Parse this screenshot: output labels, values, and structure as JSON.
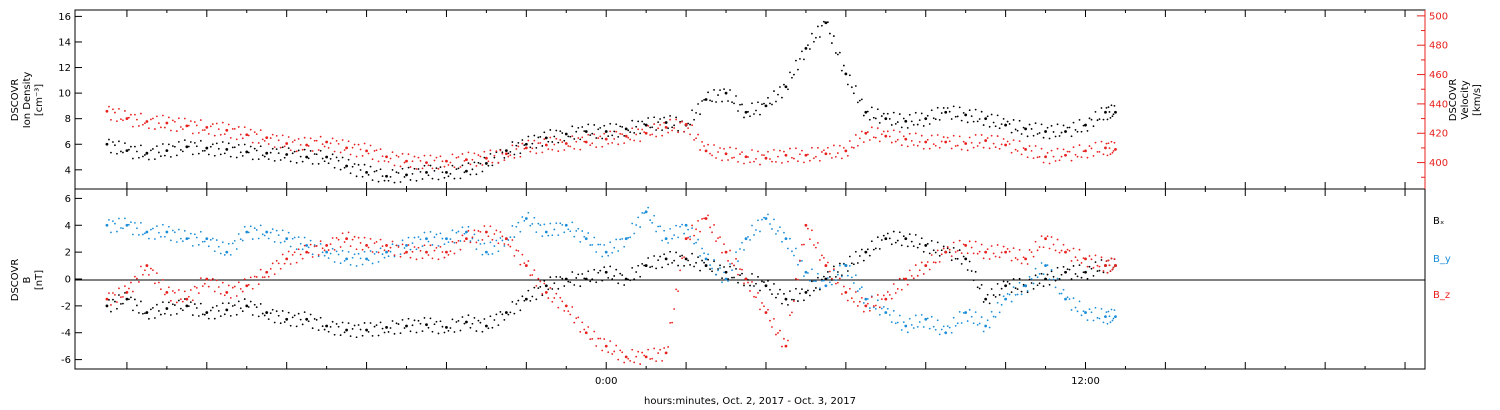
{
  "chart_data": [
    {
      "type": "scatter",
      "panel": "top",
      "ylabel_left": [
        "DSCOVR",
        "Ion Density",
        "[cm⁻³]"
      ],
      "ylabel_right": [
        "DSCOVR",
        "Velocity",
        "[km/s]"
      ],
      "left_axis": {
        "ylim": [
          2.5,
          16.5
        ],
        "ticks": [
          4,
          6,
          8,
          10,
          12,
          14,
          16
        ]
      },
      "right_axis": {
        "ylim": [
          382,
          504
        ],
        "ticks": [
          400,
          420,
          440,
          460,
          480,
          500
        ],
        "color": "#e8201e"
      },
      "series": [
        {
          "axis": "left",
          "color": "#000000",
          "x": [
            -12.5,
            -12.0,
            -11.5,
            -11.0,
            -10.5,
            -10.0,
            -9.5,
            -9.0,
            -8.5,
            -8.0,
            -7.5,
            -7.0,
            -6.5,
            -6.0,
            -5.5,
            -5.0,
            -4.5,
            -4.0,
            -3.5,
            -3.0,
            -2.5,
            -2.0,
            -1.5,
            -1.0,
            -0.5,
            0.0,
            0.5,
            1.0,
            1.5,
            2.0,
            2.5,
            3.0,
            3.5,
            4.0,
            4.5,
            5.0,
            5.5,
            6.0,
            6.5,
            7.0,
            7.5,
            8.0,
            8.5,
            9.0,
            9.5,
            10.0,
            10.5,
            11.0,
            11.5,
            12.0,
            12.5,
            12.75
          ],
          "y": [
            6.0,
            5.5,
            5.3,
            5.5,
            5.8,
            5.7,
            5.6,
            5.4,
            5.3,
            5.2,
            5.0,
            5.0,
            4.3,
            3.8,
            3.5,
            3.6,
            3.8,
            3.8,
            3.9,
            4.5,
            5.5,
            6.0,
            6.5,
            6.8,
            7.0,
            7.0,
            7.2,
            7.5,
            7.7,
            7.5,
            9.5,
            10.0,
            8.5,
            9.0,
            10.5,
            13.5,
            15.5,
            11.5,
            8.5,
            8.0,
            7.8,
            8.0,
            8.5,
            8.3,
            8.0,
            7.5,
            7.2,
            7.0,
            7.0,
            7.5,
            8.5,
            8.5
          ]
        },
        {
          "axis": "right",
          "color": "#e8201e",
          "x": [
            -12.5,
            -12.0,
            -11.5,
            -11.0,
            -10.5,
            -10.0,
            -9.5,
            -9.0,
            -8.5,
            -8.0,
            -7.5,
            -7.0,
            -6.5,
            -6.0,
            -5.5,
            -5.0,
            -4.5,
            -4.0,
            -3.5,
            -3.0,
            -2.5,
            -2.0,
            -1.5,
            -1.0,
            -0.5,
            0.0,
            0.5,
            1.0,
            1.5,
            2.0,
            2.5,
            3.0,
            3.5,
            4.0,
            4.5,
            5.0,
            5.5,
            6.0,
            6.5,
            7.0,
            7.5,
            8.0,
            8.5,
            9.0,
            9.5,
            10.0,
            10.5,
            11.0,
            11.5,
            12.0,
            12.5,
            12.75
          ],
          "y": [
            435,
            430,
            428,
            427,
            425,
            424,
            422,
            419,
            417,
            413,
            412,
            414,
            410,
            408,
            404,
            401,
            400,
            401,
            402,
            403,
            406,
            410,
            412,
            413,
            414,
            416,
            418,
            420,
            424,
            426,
            408,
            406,
            404,
            403,
            405,
            405,
            406,
            408,
            420,
            418,
            416,
            414,
            414,
            413,
            415,
            412,
            409,
            404,
            405,
            408,
            410,
            409
          ]
        }
      ]
    },
    {
      "type": "scatter",
      "panel": "bottom",
      "ylabel_left": [
        "DSCOVR",
        "B",
        "[nT]"
      ],
      "ylim": [
        -6.7,
        6.7
      ],
      "ticks": [
        -6,
        -4,
        -2,
        0,
        2,
        4,
        6
      ],
      "zero_line": true,
      "legend_position": "right",
      "series": [
        {
          "name": "Bₓ",
          "color": "#000000",
          "x": [
            -12.5,
            -12.0,
            -11.5,
            -11.0,
            -10.5,
            -10.0,
            -9.5,
            -9.0,
            -8.5,
            -8.0,
            -7.5,
            -7.0,
            -6.5,
            -6.0,
            -5.5,
            -5.0,
            -4.5,
            -4.0,
            -3.5,
            -3.0,
            -2.5,
            -2.0,
            -1.5,
            -1.0,
            -0.5,
            0.0,
            0.5,
            1.0,
            1.5,
            2.0,
            2.5,
            3.0,
            3.5,
            4.0,
            4.5,
            5.0,
            5.5,
            6.0,
            6.5,
            7.0,
            7.5,
            8.0,
            8.5,
            9.0,
            9.5,
            10.0,
            10.5,
            11.0,
            11.5,
            12.0,
            12.5,
            12.75
          ],
          "y": [
            -2.0,
            -1.5,
            -2.5,
            -2.2,
            -2.0,
            -2.5,
            -2.3,
            -2.0,
            -2.5,
            -3.0,
            -3.0,
            -3.5,
            -3.8,
            -3.8,
            -3.6,
            -3.5,
            -3.4,
            -3.6,
            -3.2,
            -3.5,
            -2.5,
            -1.5,
            -0.5,
            0.0,
            0.0,
            0.5,
            0.0,
            1.0,
            1.5,
            1.5,
            1.0,
            0.5,
            0.0,
            -0.5,
            -1.5,
            -1.0,
            0.0,
            1.0,
            2.0,
            3.0,
            3.0,
            2.5,
            2.0,
            1.5,
            -1.5,
            -0.5,
            -0.5,
            0.0,
            0.5,
            0.5,
            1.0,
            1.0
          ]
        },
        {
          "name": "B_y",
          "color": "#1c8ed8",
          "x": [
            -12.5,
            -12.0,
            -11.5,
            -11.0,
            -10.5,
            -10.0,
            -9.5,
            -9.0,
            -8.5,
            -8.0,
            -7.5,
            -7.0,
            -6.5,
            -6.0,
            -5.5,
            -5.0,
            -4.5,
            -4.0,
            -3.5,
            -3.0,
            -2.5,
            -2.0,
            -1.5,
            -1.0,
            -0.5,
            0.0,
            0.5,
            1.0,
            1.5,
            2.0,
            2.5,
            3.0,
            3.5,
            4.0,
            4.5,
            5.0,
            5.5,
            6.0,
            6.5,
            7.0,
            7.5,
            8.0,
            8.5,
            9.0,
            9.5,
            10.0,
            10.5,
            11.0,
            11.5,
            12.0,
            12.5,
            12.75
          ],
          "y": [
            4.0,
            4.0,
            3.5,
            3.5,
            3.0,
            3.0,
            2.0,
            3.5,
            3.5,
            3.0,
            2.5,
            2.0,
            1.5,
            1.5,
            2.0,
            2.5,
            3.0,
            3.0,
            3.5,
            2.0,
            3.0,
            4.5,
            3.5,
            4.0,
            3.0,
            2.0,
            3.0,
            5.0,
            3.0,
            4.0,
            1.5,
            0.0,
            3.0,
            4.5,
            3.0,
            0.5,
            -0.5,
            1.0,
            -1.5,
            -2.5,
            -3.5,
            -3.0,
            -4.0,
            -2.5,
            -3.5,
            -1.5,
            -0.5,
            1.0,
            -1.5,
            -2.5,
            -2.8,
            -2.8
          ]
        },
        {
          "name": "B_z",
          "color": "#e8201e",
          "x": [
            -12.5,
            -12.0,
            -11.5,
            -11.0,
            -10.5,
            -10.0,
            -9.5,
            -9.0,
            -8.5,
            -8.0,
            -7.5,
            -7.0,
            -6.5,
            -6.0,
            -5.5,
            -5.0,
            -4.5,
            -4.0,
            -3.5,
            -3.0,
            -2.5,
            -2.0,
            -1.5,
            -1.0,
            -0.5,
            0.0,
            0.5,
            1.0,
            1.5,
            2.0,
            2.5,
            3.0,
            3.5,
            4.0,
            4.5,
            5.0,
            5.5,
            6.0,
            6.5,
            7.0,
            7.5,
            8.0,
            8.5,
            9.0,
            9.5,
            10.0,
            10.5,
            11.0,
            11.5,
            12.0,
            12.5,
            12.75
          ],
          "y": [
            -1.5,
            -1.0,
            1.0,
            -1.0,
            -1.5,
            0.0,
            -1.0,
            -0.5,
            0.5,
            1.5,
            2.0,
            2.5,
            3.0,
            2.5,
            2.5,
            2.0,
            2.0,
            2.0,
            3.0,
            3.5,
            3.0,
            1.0,
            -1.0,
            -2.0,
            -4.0,
            -5.0,
            -5.8,
            -5.8,
            -5.5,
            3.0,
            4.5,
            2.0,
            0.0,
            -2.5,
            -5.0,
            4.0,
            1.0,
            -1.0,
            -2.0,
            -1.5,
            0.0,
            1.0,
            2.0,
            2.5,
            2.0,
            2.0,
            1.5,
            3.0,
            2.0,
            1.5,
            1.0,
            1.0
          ]
        }
      ]
    }
  ],
  "x_axis": {
    "xlim": [
      -13.3,
      20.5
    ],
    "tick_labels": [
      {
        "value": 0,
        "label": "0:00"
      },
      {
        "value": 12,
        "label": "12:00"
      }
    ],
    "minor_ticks": [
      -11,
      -9,
      -7,
      -5,
      -3,
      -1,
      1,
      3,
      5,
      7,
      9,
      11,
      13,
      15,
      17,
      19
    ],
    "major_ticks": [
      -12,
      -10,
      -8,
      -6,
      -4,
      -2,
      0,
      2,
      4,
      6,
      8,
      10,
      12,
      14,
      16,
      18,
      20
    ],
    "label": "hours:minutes, Oct.  2, 2017 - Oct.  3, 2017"
  }
}
